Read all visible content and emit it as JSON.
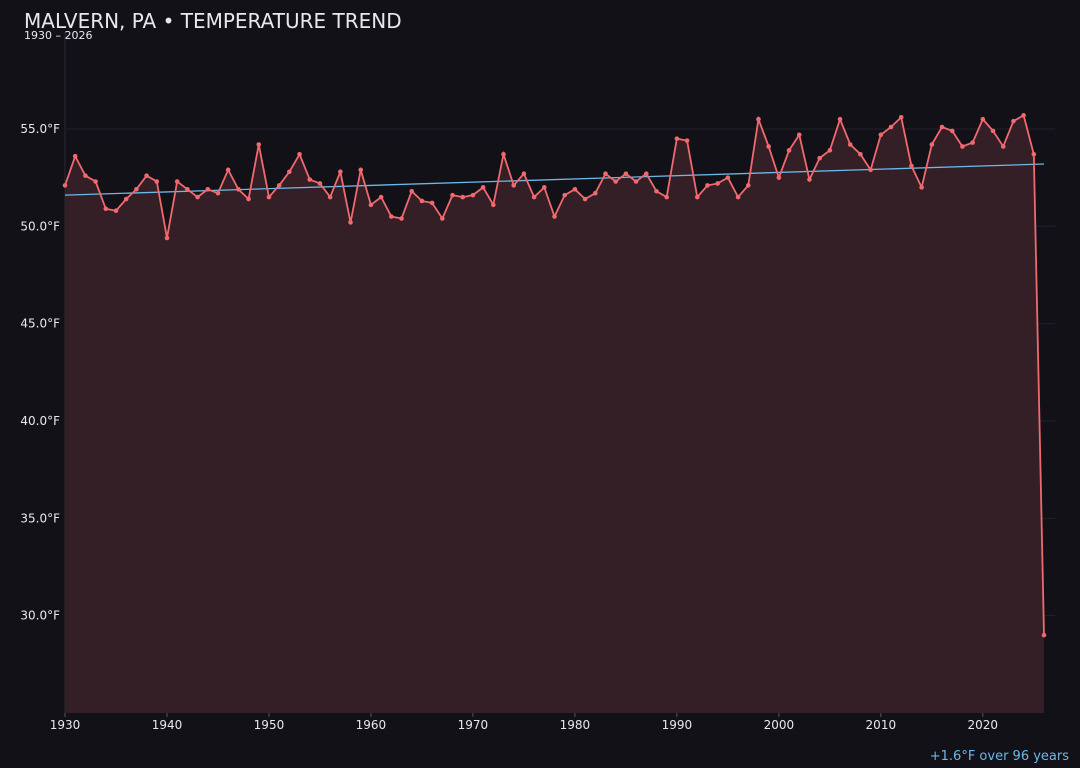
{
  "chart_data": {
    "type": "line",
    "title": "MALVERN, PA • TEMPERATURE TREND",
    "subtitle": "1930 – 2026",
    "x": [
      1930,
      1931,
      1932,
      1933,
      1934,
      1935,
      1936,
      1937,
      1938,
      1939,
      1940,
      1941,
      1942,
      1943,
      1944,
      1945,
      1946,
      1947,
      1948,
      1949,
      1950,
      1951,
      1952,
      1953,
      1954,
      1955,
      1956,
      1957,
      1958,
      1959,
      1960,
      1961,
      1962,
      1963,
      1964,
      1965,
      1966,
      1967,
      1968,
      1969,
      1970,
      1971,
      1972,
      1973,
      1974,
      1975,
      1976,
      1977,
      1978,
      1979,
      1980,
      1981,
      1982,
      1983,
      1984,
      1985,
      1986,
      1987,
      1988,
      1989,
      1990,
      1991,
      1992,
      1993,
      1994,
      1995,
      1996,
      1997,
      1998,
      1999,
      2000,
      2001,
      2002,
      2003,
      2004,
      2005,
      2006,
      2007,
      2008,
      2009,
      2010,
      2011,
      2012,
      2013,
      2014,
      2015,
      2016,
      2017,
      2018,
      2019,
      2020,
      2021,
      2022,
      2023,
      2024,
      2025,
      2026
    ],
    "values": [
      52.1,
      53.6,
      52.6,
      52.3,
      50.9,
      50.8,
      51.4,
      51.9,
      52.6,
      52.3,
      49.4,
      52.3,
      51.9,
      51.5,
      51.9,
      51.7,
      52.9,
      51.9,
      51.4,
      54.2,
      51.5,
      52.1,
      52.8,
      53.7,
      52.4,
      52.2,
      51.5,
      52.8,
      50.2,
      52.9,
      51.1,
      51.5,
      50.5,
      50.4,
      51.8,
      51.3,
      51.2,
      50.4,
      51.6,
      51.5,
      51.6,
      52.0,
      51.1,
      53.7,
      52.1,
      52.7,
      51.5,
      52.0,
      50.5,
      51.6,
      51.9,
      51.4,
      51.7,
      52.7,
      52.3,
      52.7,
      52.3,
      52.7,
      51.8,
      51.5,
      54.5,
      54.4,
      51.5,
      52.1,
      52.2,
      52.5,
      51.5,
      52.1,
      55.5,
      54.1,
      52.5,
      53.9,
      54.7,
      52.4,
      53.5,
      53.9,
      55.5,
      54.2,
      53.7,
      52.9,
      54.7,
      55.1,
      55.6,
      53.1,
      52.0,
      54.2,
      55.1,
      54.9,
      54.1,
      54.3,
      55.5,
      54.9,
      54.1,
      55.4,
      55.7,
      53.7,
      29.0
    ],
    "color": "#f0696f",
    "area_color": "#331f25",
    "trend": {
      "x": [
        1930,
        2026
      ],
      "values": [
        51.6,
        53.2
      ],
      "color": "#6cb8e6"
    },
    "annotation": "+1.6°F over 96 years",
    "xlim": [
      1930,
      2026
    ],
    "xticks": [
      1930,
      1940,
      1950,
      1960,
      1970,
      1980,
      1990,
      2000,
      2010,
      2020
    ],
    "ylim": [
      25,
      60
    ],
    "yticks": [
      {
        "value": 30,
        "label": "30.0°F"
      },
      {
        "value": 35,
        "label": "35.0°F"
      },
      {
        "value": 40,
        "label": "40.0°F"
      },
      {
        "value": 45,
        "label": "45.0°F"
      },
      {
        "value": 50,
        "label": "50.0°F"
      },
      {
        "value": 55,
        "label": "55.0°F"
      }
    ],
    "grid": true
  }
}
